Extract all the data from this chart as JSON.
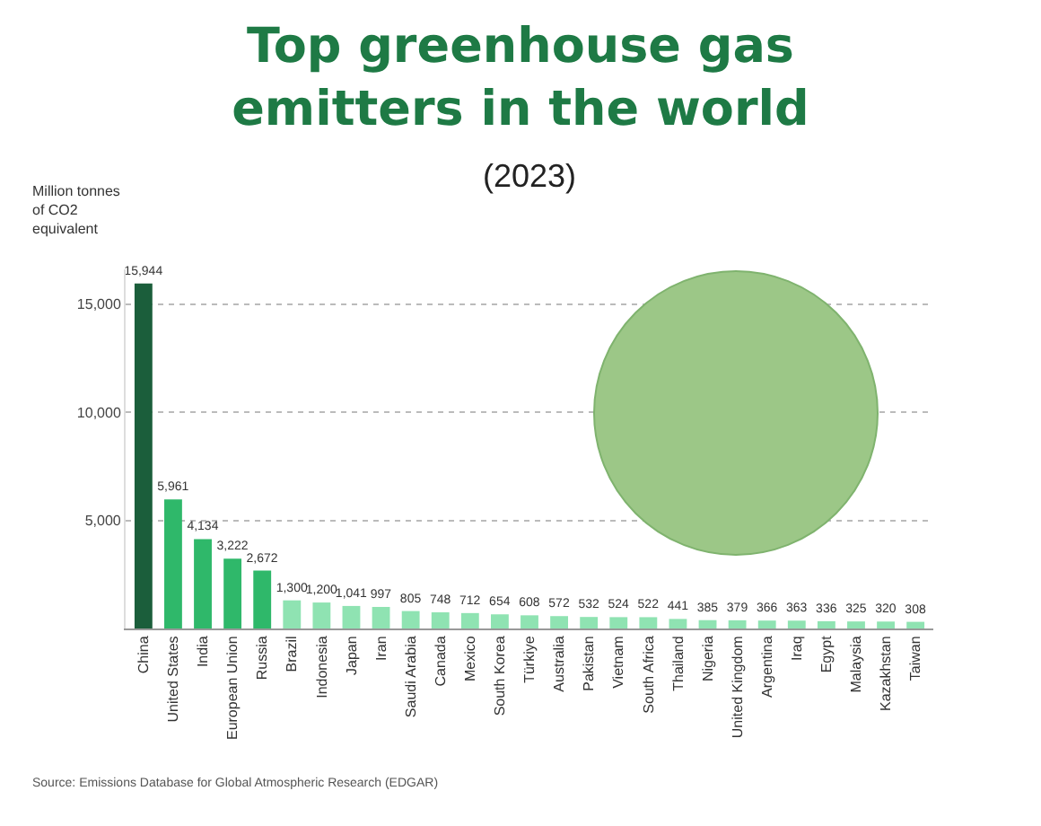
{
  "chart_data": {
    "type": "bar",
    "title": "Top greenhouse gas emitters in the world",
    "subtitle": "(2023)",
    "ylabel": "Million tonnes of CO2 equivalent",
    "categories": [
      "China",
      "United States",
      "India",
      "European Union",
      "Russia",
      "Brazil",
      "Indonesia",
      "Japan",
      "Iran",
      "Saudi Arabia",
      "Canada",
      "Mexico",
      "South Korea",
      "Türkiye",
      "Australia",
      "Pakistan",
      "Vietnam",
      "South Africa",
      "Thailand",
      "Nigeria",
      "United Kingdom",
      "Argentina",
      "Iraq",
      "Egypt",
      "Malaysia",
      "Kazakhstan",
      "Taiwan"
    ],
    "values": [
      15944,
      5961,
      4134,
      3222,
      2672,
      1300,
      1200,
      1041,
      997,
      805,
      748,
      712,
      654,
      608,
      572,
      532,
      524,
      522,
      441,
      385,
      379,
      366,
      363,
      336,
      325,
      320,
      308
    ],
    "colors": [
      "#1b5e3b",
      "#2fb86a",
      "#2fb86a",
      "#2fb86a",
      "#2fb86a",
      "#8fe3b2",
      "#8fe3b2",
      "#8fe3b2",
      "#8fe3b2",
      "#8fe3b2",
      "#8fe3b2",
      "#8fe3b2",
      "#8fe3b2",
      "#8fe3b2",
      "#8fe3b2",
      "#8fe3b2",
      "#8fe3b2",
      "#8fe3b2",
      "#8fe3b2",
      "#8fe3b2",
      "#8fe3b2",
      "#8fe3b2",
      "#8fe3b2",
      "#8fe3b2",
      "#8fe3b2",
      "#8fe3b2",
      "#8fe3b2"
    ],
    "ylim": [
      0,
      16600
    ],
    "yticks": [
      {
        "value": 5000,
        "label": "5,000"
      },
      {
        "value": 10000,
        "label": "10,000"
      },
      {
        "value": 15000,
        "label": "15,000"
      }
    ],
    "grid": "y",
    "value_labels": [
      "15,944",
      "5,961",
      "4,134",
      "3,222",
      "2,672",
      "1,300",
      "1,200",
      "1,041",
      "997",
      "805",
      "748",
      "712",
      "654",
      "608",
      "572",
      "532",
      "524",
      "522",
      "441",
      "385",
      "379",
      "366",
      "363",
      "336",
      "325",
      "320",
      "308"
    ],
    "annotations": [
      "Source: Emissions Database for Global Atmospheric Research (EDGAR)"
    ]
  }
}
